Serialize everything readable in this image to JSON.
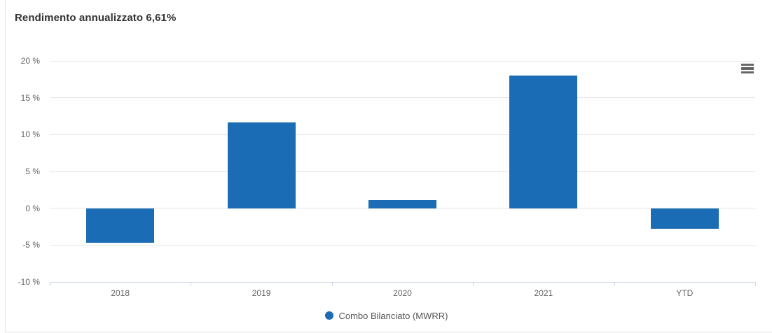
{
  "header": {
    "title": "Rendimento annualizzato 6,61%"
  },
  "controls": {
    "menu_icon": "hamburger-menu-icon"
  },
  "chart_data": {
    "type": "bar",
    "title": "Rendimento annualizzato 6,61%",
    "categories": [
      "2018",
      "2019",
      "2020",
      "2021",
      "YTD"
    ],
    "series": [
      {
        "name": "Combo Bilanciato (MWRR)",
        "values": [
          -4.7,
          11.6,
          1.1,
          18.0,
          -2.8
        ],
        "color": "#1a6cb4"
      }
    ],
    "xlabel": "",
    "ylabel": "",
    "ylim": [
      -10,
      20
    ],
    "yticks": [
      20,
      15,
      10,
      5,
      0,
      -5,
      -10
    ],
    "ytick_labels": [
      "20 %",
      "15 %",
      "10 %",
      "5 %",
      "0 %",
      "-5 %",
      "-10 %"
    ],
    "grid": true,
    "legend_position": "bottom",
    "colors": {
      "bar": "#1a6cb4",
      "gridline": "#e6e6e6",
      "axis_line": "#ccd6eb",
      "tick": "#ccd6eb",
      "axis_text": "#666666",
      "title_text": "#333333",
      "legend_text": "#555555"
    }
  }
}
